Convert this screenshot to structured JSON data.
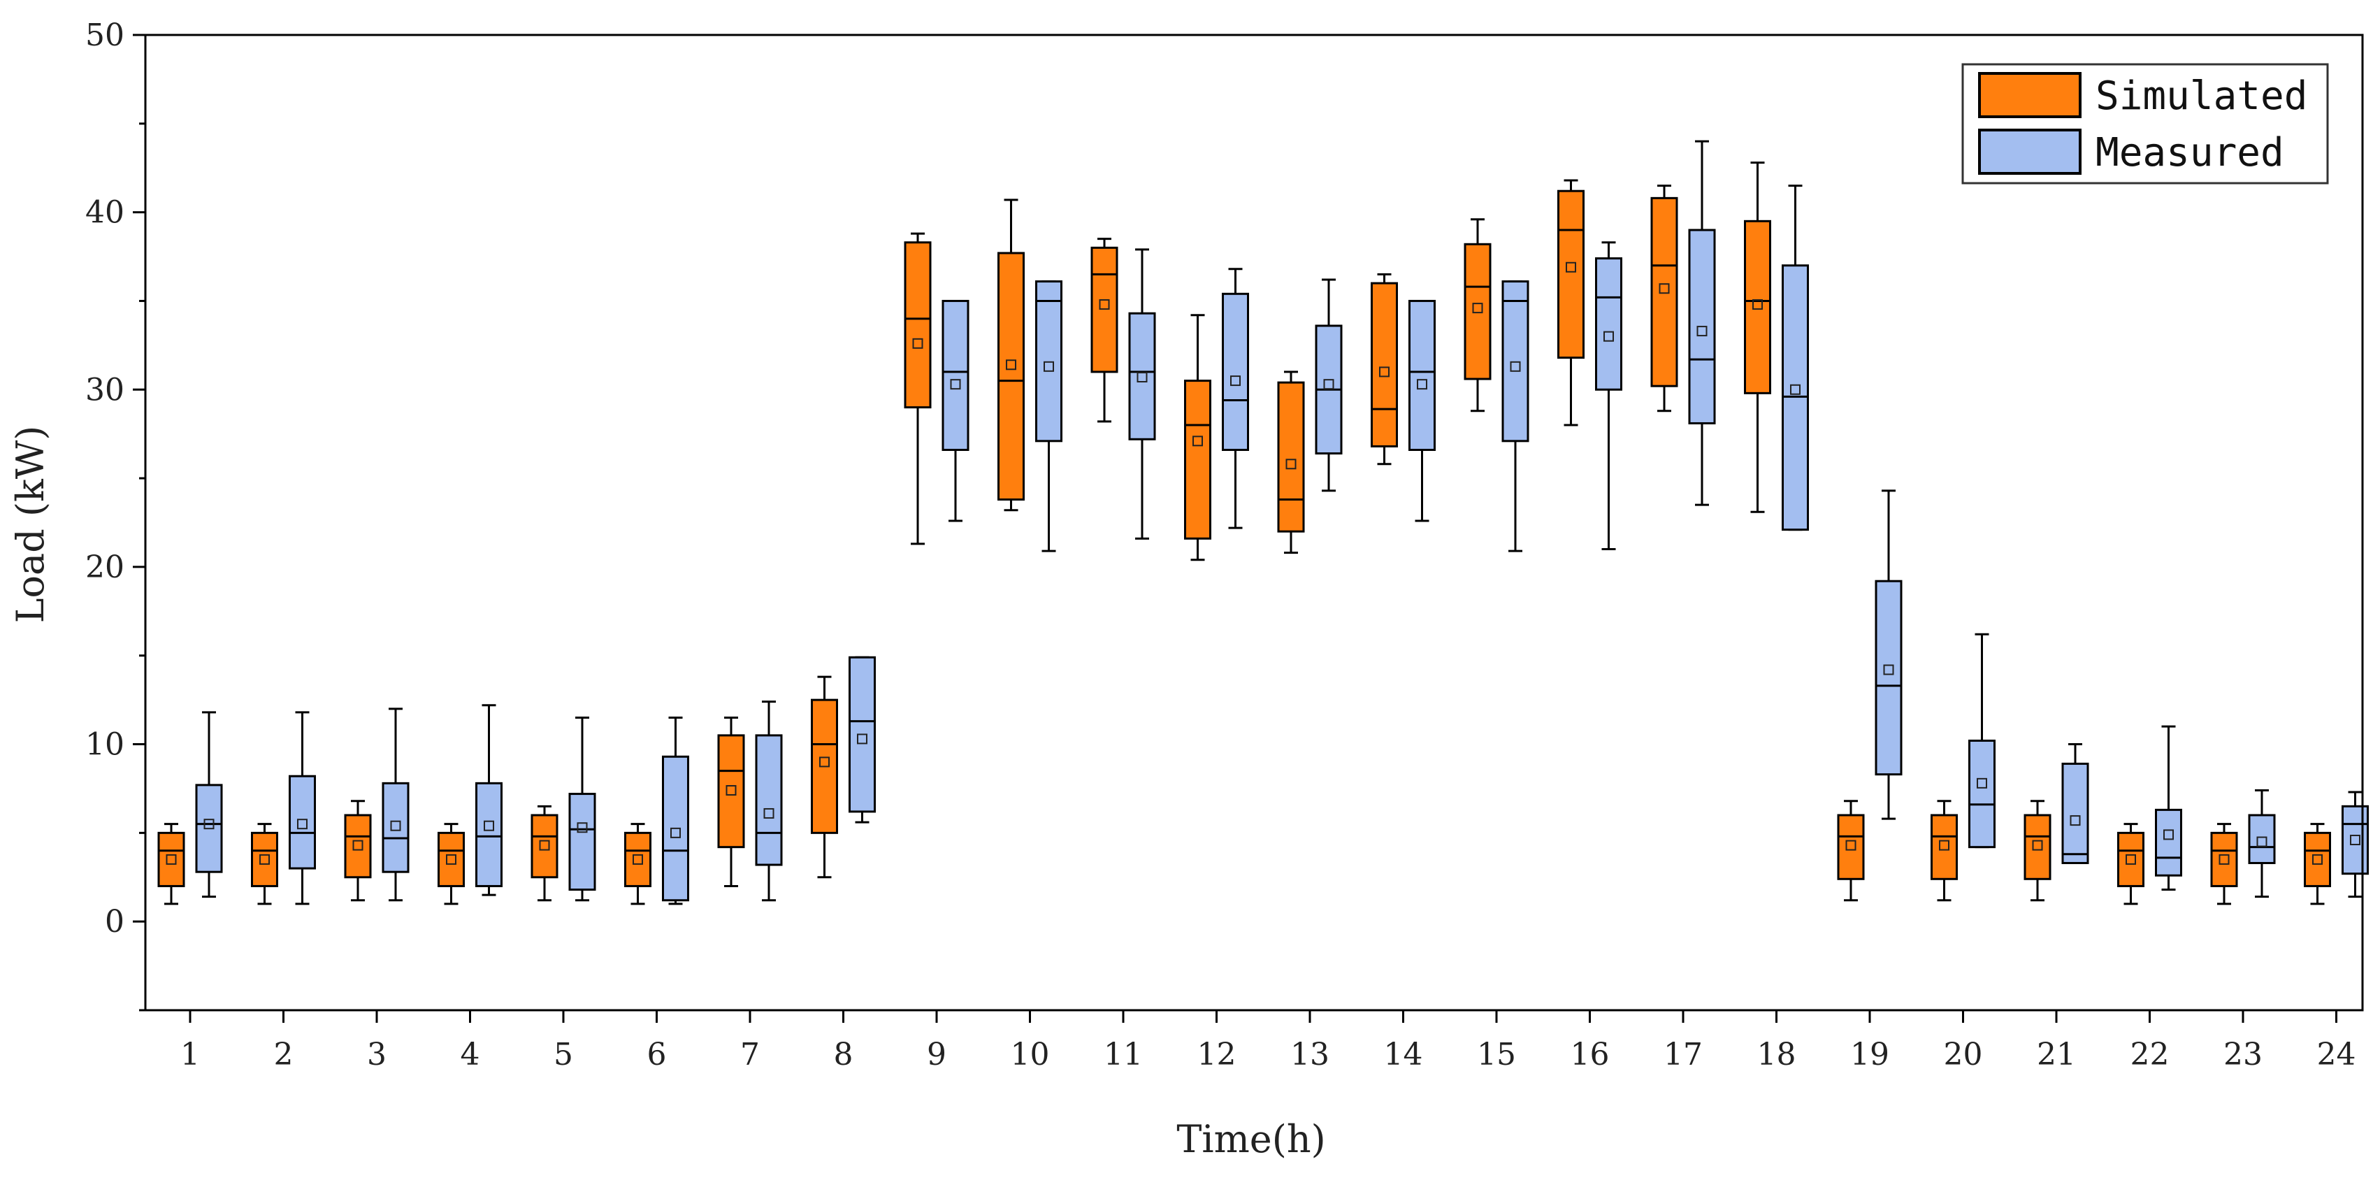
{
  "chart_data": {
    "type": "box",
    "title": "",
    "xlabel": "Time(h)",
    "ylabel": "Load (kW)",
    "ylim": [
      -5,
      50
    ],
    "yticks": [
      0,
      10,
      20,
      30,
      40,
      50
    ],
    "grid": false,
    "legend_position": "top-right",
    "categories": [
      "1",
      "2",
      "3",
      "4",
      "5",
      "6",
      "7",
      "8",
      "9",
      "10",
      "11",
      "12",
      "13",
      "14",
      "15",
      "16",
      "17",
      "18",
      "19",
      "20",
      "21",
      "22",
      "23",
      "24"
    ],
    "series": [
      {
        "name": "Simulated",
        "color": "#FF7F0E",
        "boxes": [
          {
            "min": 1.0,
            "q1": 2.0,
            "median": 4.0,
            "q3": 5.0,
            "max": 5.5,
            "mean": 3.5
          },
          {
            "min": 1.0,
            "q1": 2.0,
            "median": 4.0,
            "q3": 5.0,
            "max": 5.5,
            "mean": 3.5
          },
          {
            "min": 1.2,
            "q1": 2.5,
            "median": 4.8,
            "q3": 6.0,
            "max": 6.8,
            "mean": 4.3
          },
          {
            "min": 1.0,
            "q1": 2.0,
            "median": 4.0,
            "q3": 5.0,
            "max": 5.5,
            "mean": 3.5
          },
          {
            "min": 1.2,
            "q1": 2.5,
            "median": 4.8,
            "q3": 6.0,
            "max": 6.5,
            "mean": 4.3
          },
          {
            "min": 1.0,
            "q1": 2.0,
            "median": 4.0,
            "q3": 5.0,
            "max": 5.5,
            "mean": 3.5
          },
          {
            "min": 2.0,
            "q1": 4.2,
            "median": 8.5,
            "q3": 10.5,
            "max": 11.5,
            "mean": 7.4
          },
          {
            "min": 2.5,
            "q1": 5.0,
            "median": 10.0,
            "q3": 12.5,
            "max": 13.8,
            "mean": 9.0
          },
          {
            "min": 21.3,
            "q1": 29.0,
            "median": 34.0,
            "q3": 38.3,
            "max": 38.8,
            "mean": 32.6
          },
          {
            "min": 23.2,
            "q1": 23.8,
            "median": 30.5,
            "q3": 37.7,
            "max": 40.7,
            "mean": 31.4
          },
          {
            "min": 28.2,
            "q1": 31.0,
            "median": 36.5,
            "q3": 38.0,
            "max": 38.5,
            "mean": 34.8
          },
          {
            "min": 20.4,
            "q1": 21.6,
            "median": 28.0,
            "q3": 30.5,
            "max": 34.2,
            "mean": 27.1
          },
          {
            "min": 20.8,
            "q1": 22.0,
            "median": 23.8,
            "q3": 30.4,
            "max": 31.0,
            "mean": 25.8
          },
          {
            "min": 25.8,
            "q1": 26.8,
            "median": 28.9,
            "q3": 36.0,
            "max": 36.5,
            "mean": 31.0
          },
          {
            "min": 28.8,
            "q1": 30.6,
            "median": 35.8,
            "q3": 38.2,
            "max": 39.6,
            "mean": 34.6
          },
          {
            "min": 28.0,
            "q1": 31.8,
            "median": 39.0,
            "q3": 41.2,
            "max": 41.8,
            "mean": 36.9
          },
          {
            "min": 28.8,
            "q1": 30.2,
            "median": 37.0,
            "q3": 40.8,
            "max": 41.5,
            "mean": 35.7
          },
          {
            "min": 23.1,
            "q1": 29.8,
            "median": 35.0,
            "q3": 39.5,
            "max": 42.8,
            "mean": 34.8
          },
          {
            "min": 1.2,
            "q1": 2.4,
            "median": 4.8,
            "q3": 6.0,
            "max": 6.8,
            "mean": 4.3
          },
          {
            "min": 1.2,
            "q1": 2.4,
            "median": 4.8,
            "q3": 6.0,
            "max": 6.8,
            "mean": 4.3
          },
          {
            "min": 1.2,
            "q1": 2.4,
            "median": 4.8,
            "q3": 6.0,
            "max": 6.8,
            "mean": 4.3
          },
          {
            "min": 1.0,
            "q1": 2.0,
            "median": 4.0,
            "q3": 5.0,
            "max": 5.5,
            "mean": 3.5
          },
          {
            "min": 1.0,
            "q1": 2.0,
            "median": 4.0,
            "q3": 5.0,
            "max": 5.5,
            "mean": 3.5
          },
          {
            "min": 1.0,
            "q1": 2.0,
            "median": 4.0,
            "q3": 5.0,
            "max": 5.5,
            "mean": 3.5
          }
        ]
      },
      {
        "name": "Measured",
        "color": "#A3BEF0",
        "boxes": [
          {
            "min": 1.4,
            "q1": 2.8,
            "median": 5.5,
            "q3": 7.7,
            "max": 11.8,
            "mean": 5.5
          },
          {
            "min": 1.0,
            "q1": 3.0,
            "median": 5.0,
            "q3": 8.2,
            "max": 11.8,
            "mean": 5.5
          },
          {
            "min": 1.2,
            "q1": 2.8,
            "median": 4.7,
            "q3": 7.8,
            "max": 12.0,
            "mean": 5.4
          },
          {
            "min": 1.5,
            "q1": 2.0,
            "median": 4.8,
            "q3": 7.8,
            "max": 12.2,
            "mean": 5.4
          },
          {
            "min": 1.2,
            "q1": 1.8,
            "median": 5.2,
            "q3": 7.2,
            "max": 11.5,
            "mean": 5.3
          },
          {
            "min": 1.0,
            "q1": 1.2,
            "median": 4.0,
            "q3": 9.3,
            "max": 11.5,
            "mean": 5.0
          },
          {
            "min": 1.2,
            "q1": 3.2,
            "median": 5.0,
            "q3": 10.5,
            "max": 12.4,
            "mean": 6.1
          },
          {
            "min": 5.6,
            "q1": 6.2,
            "median": 11.3,
            "q3": 14.9,
            "max": 14.9,
            "mean": 10.3
          },
          {
            "min": 22.6,
            "q1": 26.6,
            "median": 31.0,
            "q3": 35.0,
            "max": 35.0,
            "mean": 30.3
          },
          {
            "min": 20.9,
            "q1": 27.1,
            "median": 35.0,
            "q3": 36.1,
            "max": 36.1,
            "mean": 31.3
          },
          {
            "min": 21.6,
            "q1": 27.2,
            "median": 31.0,
            "q3": 34.3,
            "max": 37.9,
            "mean": 30.7
          },
          {
            "min": 22.2,
            "q1": 26.6,
            "median": 29.4,
            "q3": 35.4,
            "max": 36.8,
            "mean": 30.5
          },
          {
            "min": 24.3,
            "q1": 26.4,
            "median": 30.0,
            "q3": 33.6,
            "max": 36.2,
            "mean": 30.3
          },
          {
            "min": 22.6,
            "q1": 26.6,
            "median": 31.0,
            "q3": 35.0,
            "max": 35.0,
            "mean": 30.3
          },
          {
            "min": 20.9,
            "q1": 27.1,
            "median": 35.0,
            "q3": 36.1,
            "max": 36.1,
            "mean": 31.3
          },
          {
            "min": 21.0,
            "q1": 30.0,
            "median": 35.2,
            "q3": 37.4,
            "max": 38.3,
            "mean": 33.0
          },
          {
            "min": 23.5,
            "q1": 28.1,
            "median": 31.7,
            "q3": 39.0,
            "max": 44.0,
            "mean": 33.3
          },
          {
            "min": 22.1,
            "q1": 22.1,
            "median": 29.6,
            "q3": 37.0,
            "max": 41.5,
            "mean": 30.0
          },
          {
            "min": 5.8,
            "q1": 8.3,
            "median": 13.3,
            "q3": 19.2,
            "max": 24.3,
            "mean": 14.2
          },
          {
            "min": 4.2,
            "q1": 4.2,
            "median": 6.6,
            "q3": 10.2,
            "max": 16.2,
            "mean": 7.8
          },
          {
            "min": 3.3,
            "q1": 3.3,
            "median": 3.8,
            "q3": 8.9,
            "max": 10.0,
            "mean": 5.7
          },
          {
            "min": 1.8,
            "q1": 2.6,
            "median": 3.6,
            "q3": 6.3,
            "max": 11.0,
            "mean": 4.9
          },
          {
            "min": 1.4,
            "q1": 3.3,
            "median": 4.2,
            "q3": 6.0,
            "max": 7.4,
            "mean": 4.5
          },
          {
            "min": 1.4,
            "q1": 2.7,
            "median": 5.5,
            "q3": 6.5,
            "max": 7.3,
            "mean": 4.6
          }
        ]
      }
    ]
  }
}
